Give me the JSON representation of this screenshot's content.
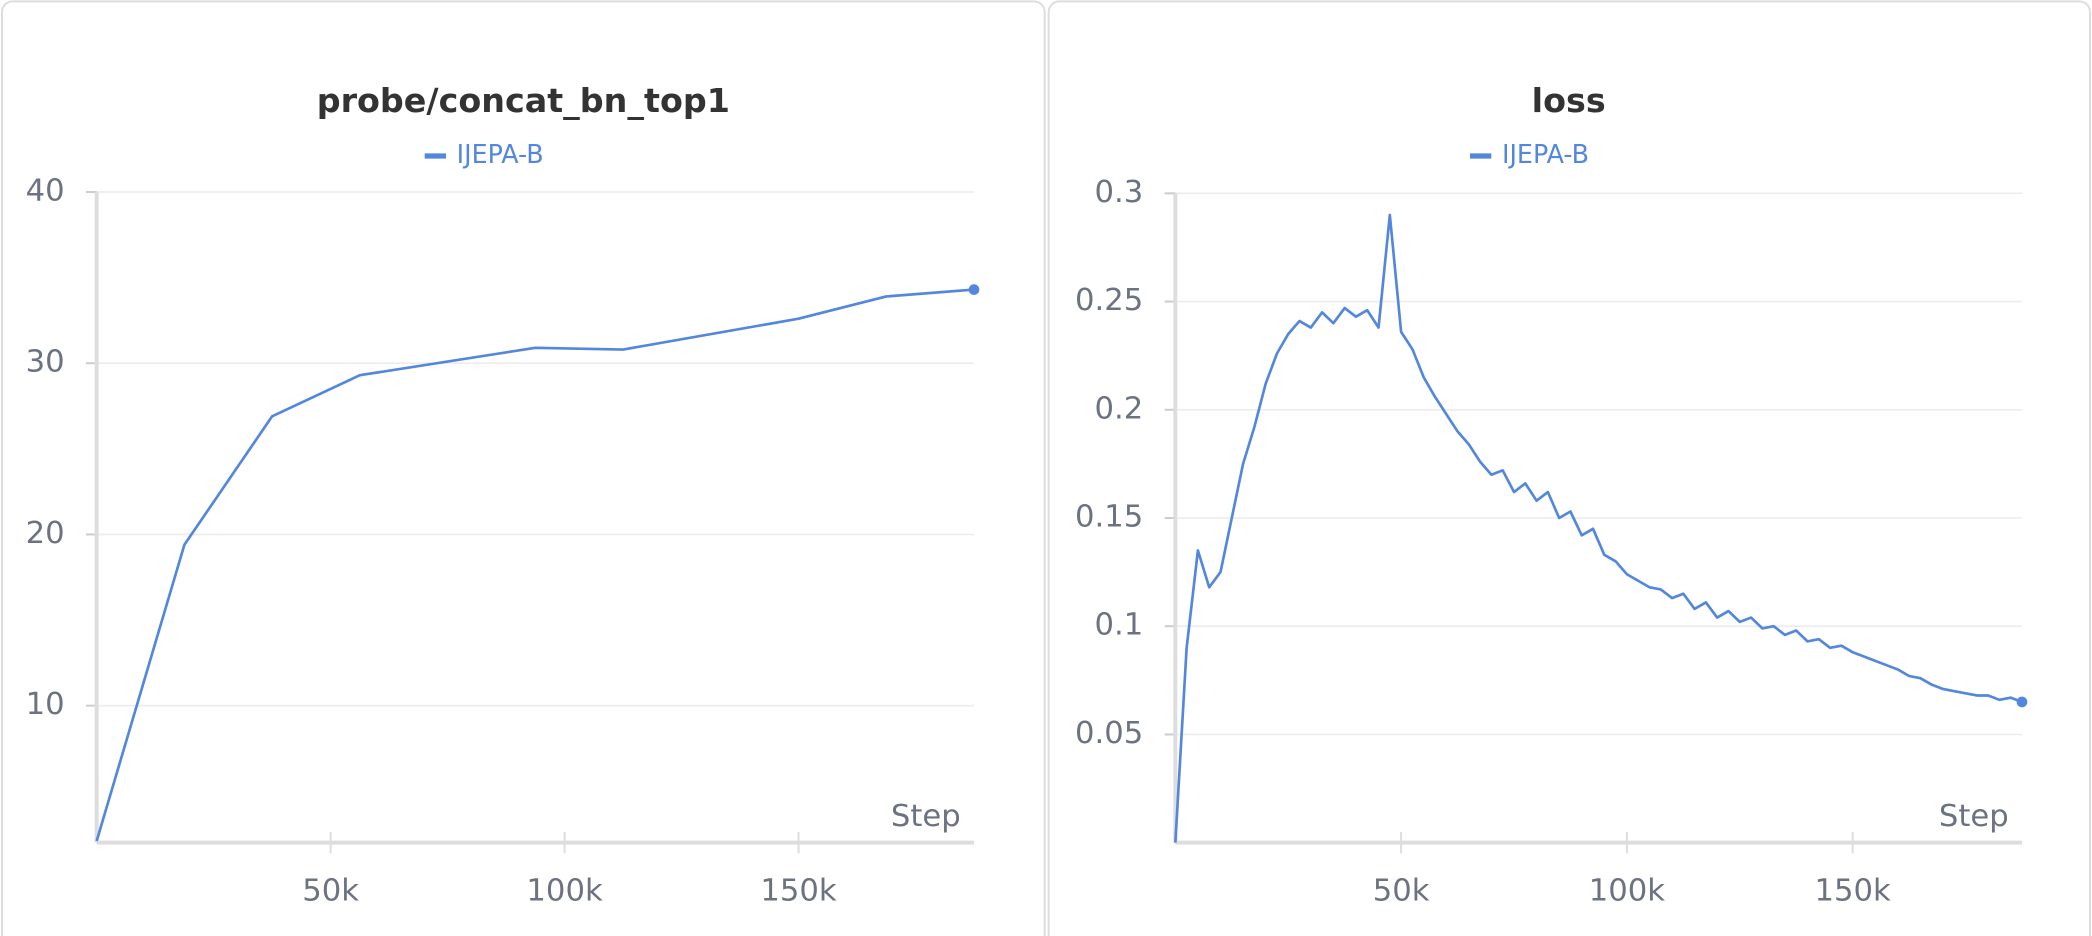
{
  "chart_data": [
    {
      "type": "line",
      "title": "probe/concat_bn_top1",
      "x_label": "Step",
      "x": [
        0,
        18750,
        37500,
        56250,
        93750,
        112500,
        150000,
        168750,
        187500
      ],
      "series": [
        {
          "name": "IJEPA-B",
          "color": "#5387dd",
          "values": [
            2.1,
            19.4,
            26.9,
            29.3,
            30.9,
            30.8,
            32.6,
            33.9,
            34.3
          ]
        }
      ],
      "xlim": [
        0,
        187500
      ],
      "ylim": [
        2,
        40
      ],
      "xticks": [
        {
          "value": 50000,
          "label": "50k"
        },
        {
          "value": 100000,
          "label": "100k"
        },
        {
          "value": 150000,
          "label": "150k"
        }
      ],
      "yticks": [
        10,
        20,
        30,
        40
      ],
      "grid": true
    },
    {
      "type": "line",
      "title": "loss",
      "x_label": "Step",
      "x": [
        0,
        2500,
        5000,
        7500,
        10000,
        12500,
        15000,
        17500,
        20000,
        22500,
        25000,
        27500,
        30000,
        32500,
        35000,
        37500,
        40000,
        42500,
        45000,
        47500,
        50000,
        52500,
        55000,
        57500,
        60000,
        62500,
        65000,
        67500,
        70000,
        72500,
        75000,
        77500,
        80000,
        82500,
        85000,
        87500,
        90000,
        92500,
        95000,
        97500,
        100000,
        102500,
        105000,
        107500,
        110000,
        112500,
        115000,
        117500,
        120000,
        122500,
        125000,
        127500,
        130000,
        132500,
        135000,
        137500,
        140000,
        142500,
        145000,
        147500,
        150000,
        152500,
        155000,
        157500,
        160000,
        162500,
        165000,
        167500,
        170000,
        172500,
        175000,
        177500,
        180000,
        182500,
        185000,
        187500
      ],
      "series": [
        {
          "name": "IJEPA-B",
          "color": "#5387dd",
          "values": [
            0,
            0.09,
            0.135,
            0.118,
            0.125,
            0.15,
            0.175,
            0.192,
            0.212,
            0.226,
            0.235,
            0.241,
            0.238,
            0.245,
            0.24,
            0.247,
            0.243,
            0.246,
            0.238,
            0.29,
            0.236,
            0.228,
            0.215,
            0.206,
            0.198,
            0.19,
            0.184,
            0.176,
            0.17,
            0.172,
            0.162,
            0.166,
            0.158,
            0.162,
            0.15,
            0.153,
            0.142,
            0.145,
            0.133,
            0.13,
            0.124,
            0.121,
            0.118,
            0.117,
            0.113,
            0.115,
            0.108,
            0.111,
            0.104,
            0.107,
            0.102,
            0.104,
            0.099,
            0.1,
            0.096,
            0.098,
            0.093,
            0.094,
            0.09,
            0.091,
            0.088,
            0.086,
            0.084,
            0.082,
            0.08,
            0.077,
            0.076,
            0.073,
            0.071,
            0.07,
            0.069,
            0.068,
            0.068,
            0.066,
            0.067,
            0.065
          ]
        }
      ],
      "xlim": [
        0,
        187500
      ],
      "ylim": [
        0,
        0.3
      ],
      "xticks": [
        {
          "value": 50000,
          "label": "50k"
        },
        {
          "value": 100000,
          "label": "100k"
        },
        {
          "value": 150000,
          "label": "150k"
        }
      ],
      "yticks": [
        0.05,
        0.1,
        0.15,
        0.2,
        0.25,
        0.3
      ],
      "grid": true
    }
  ]
}
